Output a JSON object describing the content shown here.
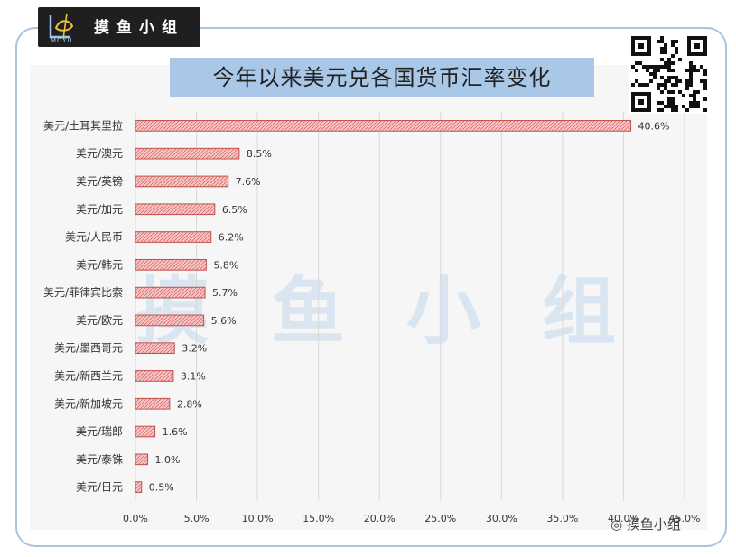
{
  "logo": {
    "text": "摸鱼小组",
    "sub": "MOYU"
  },
  "brand": {
    "text": "摸鱼小组"
  },
  "watermark": {
    "text": "摸鱼小组"
  },
  "colors": {
    "bar_fill": "#f2b8b8",
    "bar_stroke": "#c0504d",
    "title_bg": "#a9c8e8",
    "frame": "#a9c4e0",
    "grid": "#d9d9d9"
  },
  "chart_data": {
    "type": "bar",
    "orientation": "horizontal",
    "title": "今年以来美元兑各国货币汇率变化",
    "categories": [
      "美元/土耳其里拉",
      "美元/澳元",
      "美元/英镑",
      "美元/加元",
      "美元/人民币",
      "美元/韩元",
      "美元/菲律宾比索",
      "美元/欧元",
      "美元/墨西哥元",
      "美元/新西兰元",
      "美元/新加坡元",
      "美元/瑞郎",
      "美元/泰铢",
      "美元/日元"
    ],
    "values": [
      40.6,
      8.5,
      7.6,
      6.5,
      6.2,
      5.8,
      5.7,
      5.6,
      3.2,
      3.1,
      2.8,
      1.6,
      1.0,
      0.5
    ],
    "value_labels": [
      "40.6%",
      "8.5%",
      "7.6%",
      "6.5%",
      "6.2%",
      "5.8%",
      "5.7%",
      "5.6%",
      "3.2%",
      "3.1%",
      "2.8%",
      "1.6%",
      "1.0%",
      "0.5%"
    ],
    "xlim": [
      0,
      45
    ],
    "xticks": [
      0,
      5,
      10,
      15,
      20,
      25,
      30,
      35,
      40,
      45
    ],
    "xtick_labels": [
      "0.0%",
      "5.0%",
      "10.0%",
      "15.0%",
      "20.0%",
      "25.0%",
      "30.0%",
      "35.0%",
      "40.0%",
      "45.0%"
    ],
    "xlabel": "",
    "ylabel": "",
    "grid": true
  }
}
